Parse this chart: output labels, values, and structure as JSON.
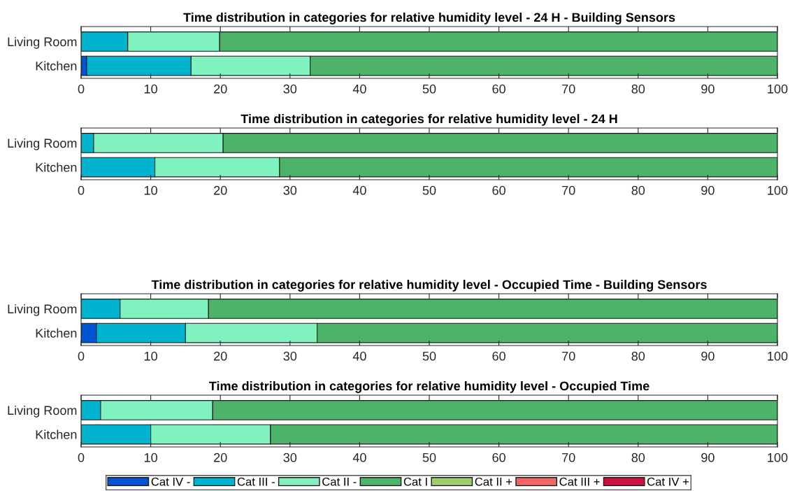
{
  "chart_data": [
    {
      "type": "bar",
      "orientation": "horizontal",
      "stacked": true,
      "title": "Time distribution in categories for relative humidity level - 24 H - Building Sensors",
      "categories": [
        "Living Room",
        "Kitchen"
      ],
      "xlim": [
        0,
        100
      ],
      "xticks": [
        0,
        10,
        20,
        30,
        40,
        50,
        60,
        70,
        80,
        90,
        100
      ],
      "series": [
        {
          "color": "#0055d4",
          "values": [
            0,
            0.8
          ]
        },
        {
          "color": "#00b4d0",
          "values": [
            6.7,
            15.0
          ]
        },
        {
          "color": "#80f2c0",
          "values": [
            13.2,
            17.1
          ]
        },
        {
          "color": "#4db368",
          "values": [
            80.1,
            67.1
          ]
        },
        {
          "color": "#9dcd6c",
          "values": [
            0,
            0
          ]
        },
        {
          "color": "#f26666",
          "values": [
            0,
            0
          ]
        },
        {
          "color": "#cc1040",
          "values": [
            0,
            0
          ]
        }
      ]
    },
    {
      "type": "bar",
      "orientation": "horizontal",
      "stacked": true,
      "title": "Time distribution in categories for relative humidity level - 24 H",
      "categories": [
        "Living Room",
        "Kitchen"
      ],
      "xlim": [
        0,
        100
      ],
      "xticks": [
        0,
        10,
        20,
        30,
        40,
        50,
        60,
        70,
        80,
        90,
        100
      ],
      "series": [
        {
          "color": "#0055d4",
          "values": [
            0,
            0
          ]
        },
        {
          "color": "#00b4d0",
          "values": [
            1.8,
            10.6
          ]
        },
        {
          "color": "#80f2c0",
          "values": [
            18.6,
            17.9
          ]
        },
        {
          "color": "#4db368",
          "values": [
            79.6,
            71.5
          ]
        },
        {
          "color": "#9dcd6c",
          "values": [
            0,
            0
          ]
        },
        {
          "color": "#f26666",
          "values": [
            0,
            0
          ]
        },
        {
          "color": "#cc1040",
          "values": [
            0,
            0
          ]
        }
      ]
    },
    {
      "type": "bar",
      "orientation": "horizontal",
      "stacked": true,
      "title": "Time distribution in categories for relative humidity level - Occupied Time - Building Sensors",
      "categories": [
        "Living Room",
        "Kitchen"
      ],
      "xlim": [
        0,
        100
      ],
      "xticks": [
        0,
        10,
        20,
        30,
        40,
        50,
        60,
        70,
        80,
        90,
        100
      ],
      "series": [
        {
          "color": "#0055d4",
          "values": [
            0,
            2.2
          ]
        },
        {
          "color": "#00b4d0",
          "values": [
            5.6,
            12.8
          ]
        },
        {
          "color": "#80f2c0",
          "values": [
            12.7,
            18.9
          ]
        },
        {
          "color": "#4db368",
          "values": [
            81.7,
            66.1
          ]
        },
        {
          "color": "#9dcd6c",
          "values": [
            0,
            0
          ]
        },
        {
          "color": "#f26666",
          "values": [
            0,
            0
          ]
        },
        {
          "color": "#cc1040",
          "values": [
            0,
            0
          ]
        }
      ]
    },
    {
      "type": "bar",
      "orientation": "horizontal",
      "stacked": true,
      "title": "Time distribution in categories for relative humidity level - Occupied Time",
      "categories": [
        "Living Room",
        "Kitchen"
      ],
      "xlim": [
        0,
        100
      ],
      "xticks": [
        0,
        10,
        20,
        30,
        40,
        50,
        60,
        70,
        80,
        90,
        100
      ],
      "legend": "bottom",
      "series": [
        {
          "name": "Cat IV -",
          "color": "#0055d4",
          "values": [
            0,
            0
          ]
        },
        {
          "name": "Cat III -",
          "color": "#00b4d0",
          "values": [
            2.8,
            10.0
          ]
        },
        {
          "name": "Cat II -",
          "color": "#80f2c0",
          "values": [
            16.1,
            17.2
          ]
        },
        {
          "name": "Cat I",
          "color": "#4db368",
          "values": [
            81.1,
            72.8
          ]
        },
        {
          "name": "Cat II +",
          "color": "#9dcd6c",
          "values": [
            0,
            0
          ]
        },
        {
          "name": "Cat III +",
          "color": "#f26666",
          "values": [
            0,
            0
          ]
        },
        {
          "name": "Cat IV +",
          "color": "#cc1040",
          "values": [
            0,
            0
          ]
        }
      ]
    }
  ]
}
